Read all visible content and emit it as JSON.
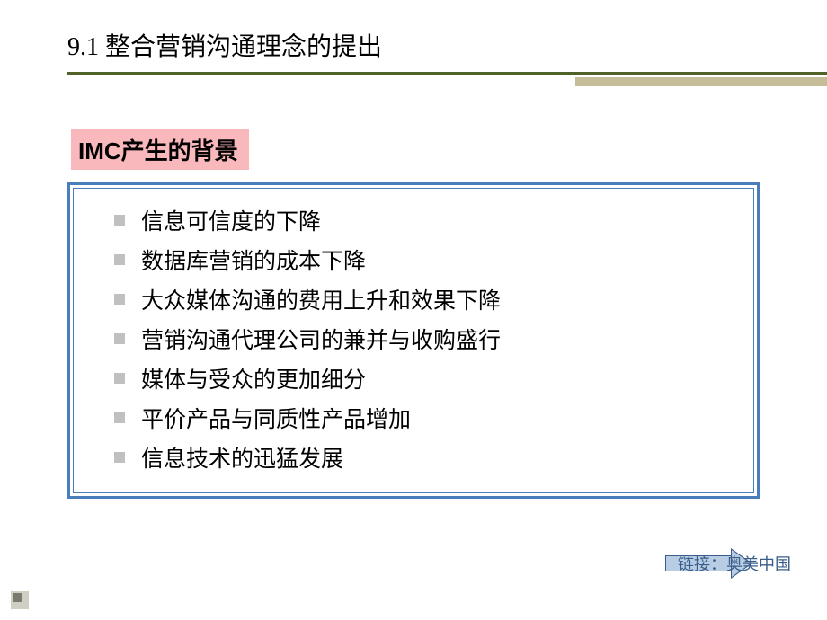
{
  "slide": {
    "title": "9.1 整合营销沟通理念的提出",
    "subtitle": "IMC产生的背景",
    "bullets": [
      "信息可信度的下降",
      "数据库营销的成本下降",
      "大众媒体沟通的费用上升和效果下降",
      "营销沟通代理公司的兼并与收购盛行",
      "媒体与受众的更加细分",
      "平价产品与同质性产品增加",
      "信息技术的迅猛发展"
    ],
    "link_label": "链接：奥美中国"
  },
  "styles": {
    "title_color": "#000000",
    "title_fontsize": 28,
    "underline_color": "#4f6228",
    "accent_bar_color": "#c4bd97",
    "subtitle_bg": "#f8b8bc",
    "subtitle_fontsize": 26,
    "box_border_color": "#4a7ebb",
    "bullet_marker_color": "#c0c0c0",
    "bullet_fontsize": 25,
    "arrow_fill": "#b8cce4",
    "arrow_border": "#385d8a",
    "link_color": "#385d8a",
    "background": "#ffffff"
  }
}
